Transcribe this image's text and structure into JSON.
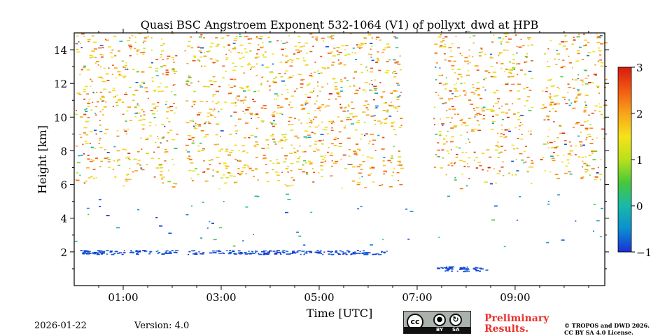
{
  "chart_data": {
    "type": "heatmap",
    "title": "Quasi BSC Angstroem Exponent 532-1064 (V1) of pollyxt_dwd at HPB",
    "xlabel": "Time [UTC]",
    "ylabel": "Height [km]",
    "xlim": [
      0,
      10.83
    ],
    "ylim": [
      0,
      15
    ],
    "x_ticks": [
      {
        "value": 1,
        "label": "01:00"
      },
      {
        "value": 3,
        "label": "03:00"
      },
      {
        "value": 5,
        "label": "05:00"
      },
      {
        "value": 7,
        "label": "07:00"
      },
      {
        "value": 9,
        "label": "09:00"
      }
    ],
    "y_ticks": [
      {
        "value": 2,
        "label": "2"
      },
      {
        "value": 4,
        "label": "4"
      },
      {
        "value": 6,
        "label": "6"
      },
      {
        "value": 8,
        "label": "8"
      },
      {
        "value": 10,
        "label": "10"
      },
      {
        "value": 12,
        "label": "12"
      },
      {
        "value": 14,
        "label": "14"
      }
    ],
    "colorbar": {
      "min": -1,
      "max": 3,
      "ticks": [
        {
          "value": 3,
          "label": "3"
        },
        {
          "value": 2,
          "label": "2"
        },
        {
          "value": 1,
          "label": "1"
        },
        {
          "value": 0,
          "label": "0"
        },
        {
          "value": -1,
          "label": "−1"
        }
      ],
      "colormap": [
        "#1a2fd6",
        "#0a8fd0",
        "#19b9a8",
        "#46c83a",
        "#b9e01a",
        "#f6e21a",
        "#f7a41a",
        "#f25a12",
        "#d81a10"
      ]
    },
    "data_gaps_hours": [
      [
        2.08,
        2.25
      ],
      [
        9.33,
        9.5
      ]
    ],
    "clear_region": {
      "x": [
        6.67,
        7.33
      ],
      "y_min_km": 5.5
    },
    "scattered_data_top_km": 15,
    "scattered_data_base_km": 6,
    "low_layer": {
      "height_km": 2.0,
      "x_range": [
        0.1,
        6.4
      ],
      "dominant_value": -1.0
    },
    "low_layer_late": {
      "height_km": 1.0,
      "x_range": [
        7.4,
        8.4
      ],
      "dominant_value": -1.0
    }
  },
  "footer": {
    "date": "2026-01-22",
    "version": "Version: 4.0",
    "preliminary_line1": "Preliminary",
    "preliminary_line2": "Results.",
    "copyright_line1": "© TROPOS and DWD 2026.",
    "copyright_line2": "CC BY SA 4.0 License."
  },
  "license_badge": {
    "cc": "cc",
    "by_label": "BY",
    "sa_label": "SA"
  }
}
